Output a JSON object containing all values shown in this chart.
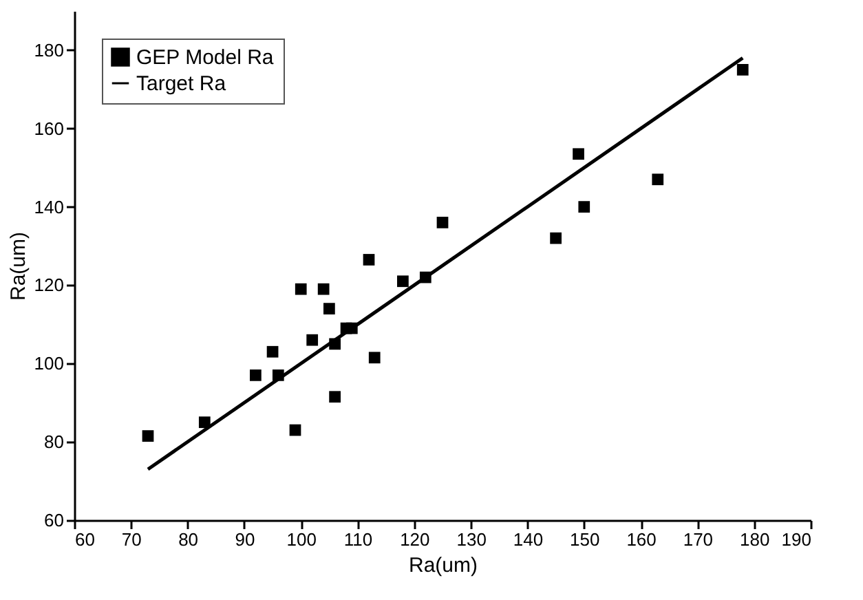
{
  "chart_data": {
    "type": "scatter",
    "xlabel": "Ra(um)",
    "ylabel": "Ra(um)",
    "xlim": [
      60,
      190
    ],
    "ylim": [
      60,
      190
    ],
    "xticks": [
      60,
      70,
      80,
      90,
      100,
      110,
      120,
      130,
      140,
      150,
      160,
      170,
      180,
      190
    ],
    "yticks": [
      60,
      80,
      100,
      120,
      140,
      160,
      180
    ],
    "grid": false,
    "legend": "top left",
    "series": [
      {
        "name": "GEP Model Ra",
        "marker": "square",
        "color": "#000000",
        "x": [
          73,
          83,
          92,
          95,
          96,
          99,
          100,
          102,
          104,
          105,
          106,
          106,
          108,
          109,
          112,
          113,
          118,
          122,
          125,
          145,
          149,
          150,
          163,
          178
        ],
        "values": [
          81.5,
          85,
          97,
          103,
          97,
          83,
          119,
          106,
          119,
          114,
          105,
          91.5,
          109,
          109,
          126.5,
          101.5,
          121,
          122,
          136,
          132,
          153.5,
          140,
          147,
          175
        ]
      },
      {
        "name": "Target Ra",
        "type": "line",
        "color": "#000000",
        "x": [
          73,
          178
        ],
        "values": [
          73,
          178
        ],
        "line_style": "solid"
      }
    ]
  }
}
